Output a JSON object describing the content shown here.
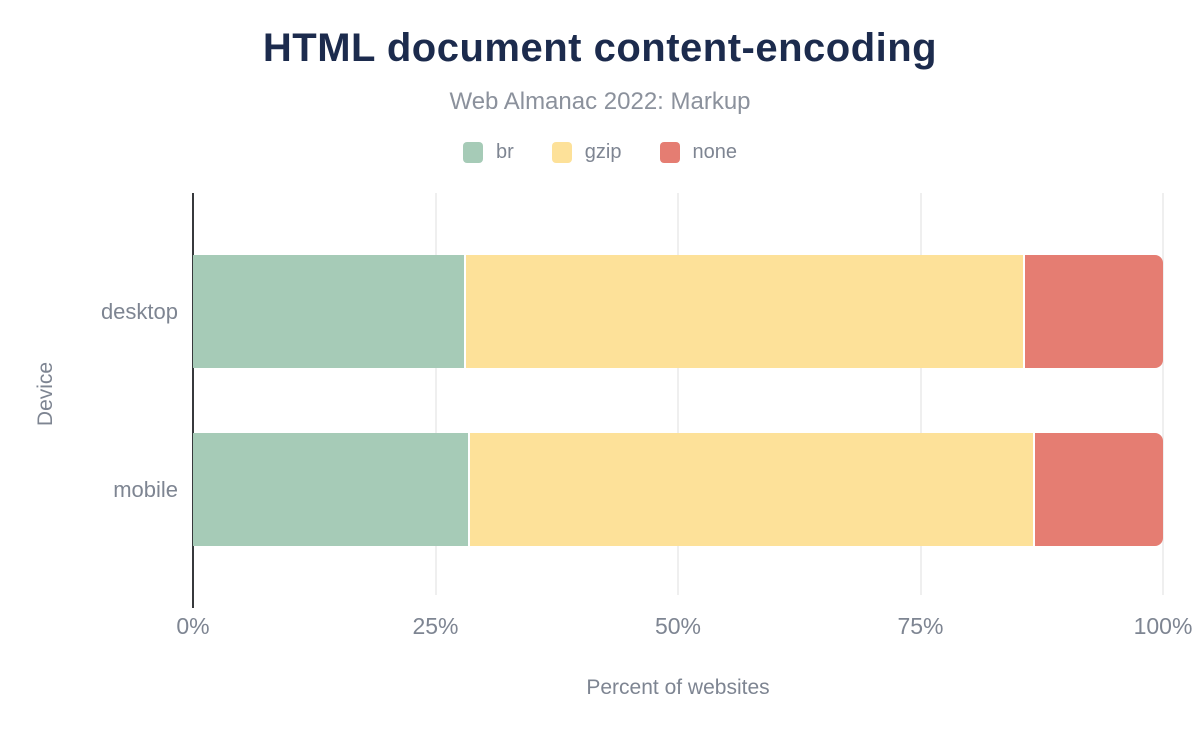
{
  "chart_data": {
    "type": "bar",
    "orientation": "horizontal",
    "stacked": true,
    "title": "HTML document content-encoding",
    "subtitle": "Web Almanac 2022: Markup",
    "xlabel": "Percent of websites",
    "ylabel": "Device",
    "categories": [
      "desktop",
      "mobile"
    ],
    "series": [
      {
        "name": "br",
        "color": "#a6cbb7",
        "values": [
          27.9,
          28.3
        ]
      },
      {
        "name": "gzip",
        "color": "#fde199",
        "values": [
          57.7,
          58.3
        ]
      },
      {
        "name": "none",
        "color": "#e57d72",
        "values": [
          14.4,
          13.4
        ]
      }
    ],
    "x_ticks": [
      "0%",
      "25%",
      "50%",
      "75%",
      "100%"
    ],
    "xlim": [
      0,
      100
    ],
    "grid": "vertical",
    "legend_position": "top"
  },
  "colors": {
    "title_text": "#1c2b4d",
    "muted_text": "#7e8592",
    "subtitle_text": "#8b919c",
    "gridline": "#efefef",
    "axis_line": "#37393c",
    "background": "#ffffff"
  }
}
